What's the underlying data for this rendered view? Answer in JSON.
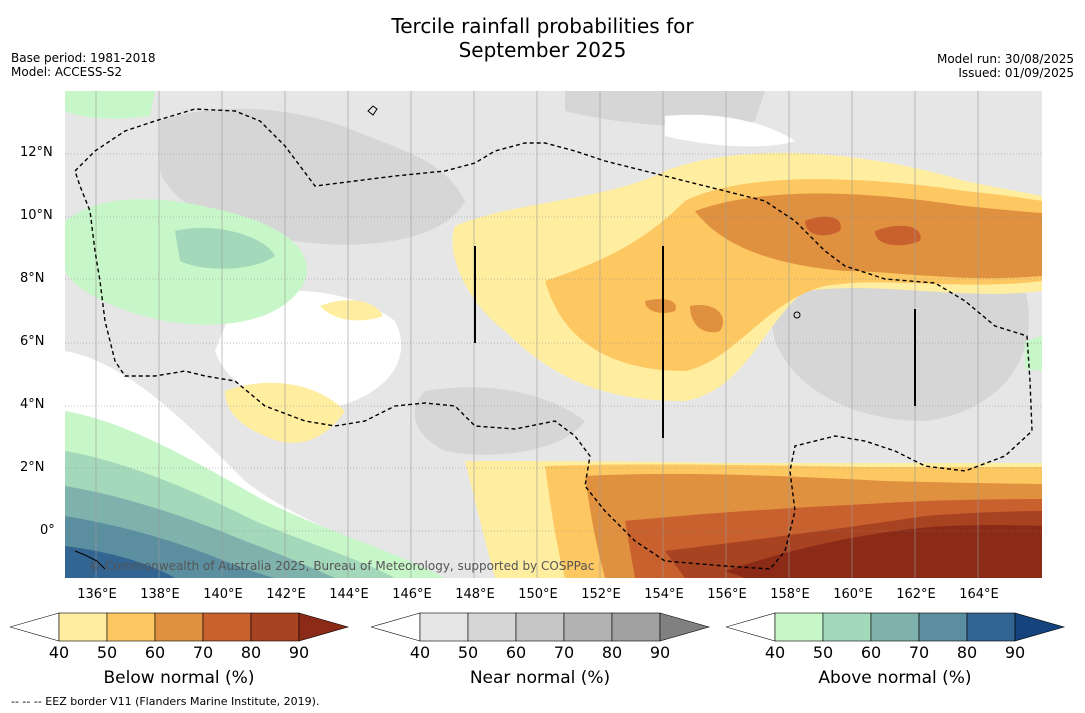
{
  "header": {
    "title_line1": "Tercile rainfall probabilities for",
    "title_line2": "September 2025",
    "base_period": "Base period: 1981-2018",
    "model": "Model: ACCESS-S2",
    "model_run": "Model run: 30/08/2025",
    "issued": "Issued: 01/09/2025"
  },
  "map": {
    "lat_labels": [
      "12°N",
      "10°N",
      "8°N",
      "6°N",
      "4°N",
      "2°N",
      "0°"
    ],
    "lon_labels": [
      "136°E",
      "138°E",
      "140°E",
      "142°E",
      "144°E",
      "146°E",
      "148°E",
      "150°E",
      "152°E",
      "154°E",
      "156°E",
      "158°E",
      "160°E",
      "162°E",
      "164°E"
    ],
    "copyright": "© Commonwealth of Australia 2025, Bureau of Meteorology, supported by COSPPac"
  },
  "colorbars": [
    {
      "title": "Below normal (%)",
      "ticks": [
        "40",
        "50",
        "60",
        "70",
        "80",
        "90"
      ],
      "colors": [
        "#ffffff",
        "#ffeda0",
        "#fdc862",
        "#e0913f",
        "#c9612f",
        "#a84322",
        "#8b2a16"
      ]
    },
    {
      "title": "Near normal (%)",
      "ticks": [
        "40",
        "50",
        "60",
        "70",
        "80",
        "90"
      ],
      "colors": [
        "#ffffff",
        "#e6e6e6",
        "#d6d6d6",
        "#c6c6c6",
        "#b2b2b2",
        "#a0a0a0",
        "#808080"
      ]
    },
    {
      "title": "Above normal (%)",
      "ticks": [
        "40",
        "50",
        "60",
        "70",
        "80",
        "90"
      ],
      "colors": [
        "#ffffff",
        "#c7f7c8",
        "#a3d8bb",
        "#7fb2ac",
        "#5b8fa0",
        "#336592",
        "#14437d"
      ]
    }
  ],
  "footnote": "--  --  -- EEZ border V11 (Flanders Marine Institute, 2019)."
}
